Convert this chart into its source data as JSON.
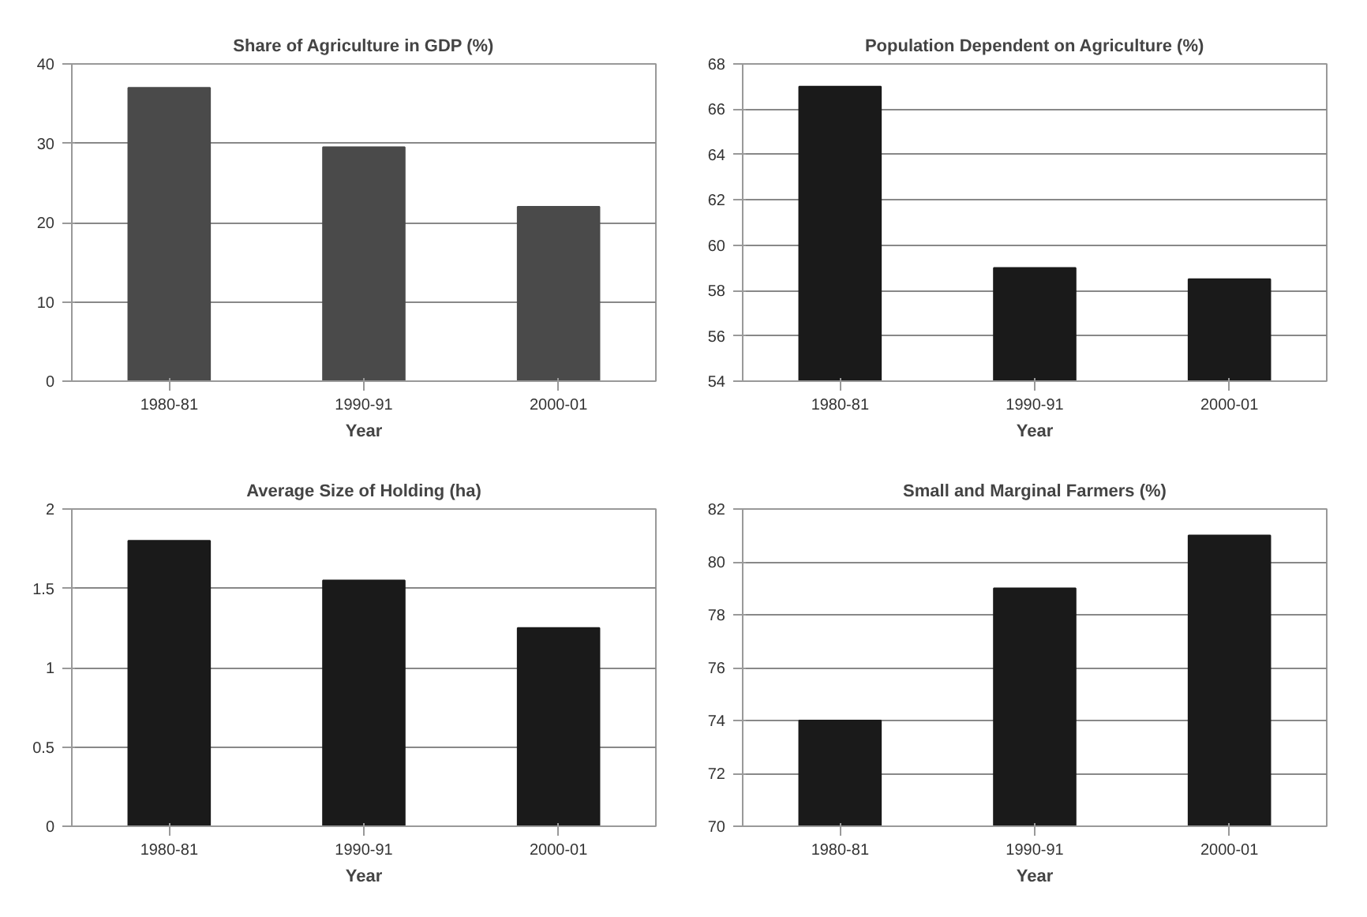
{
  "chart_data": [
    {
      "type": "bar",
      "title": "Share of Agriculture in GDP (%)",
      "xlabel": "Year",
      "categories": [
        "1980-81",
        "1990-91",
        "2000-01"
      ],
      "values": [
        37,
        29.5,
        22
      ],
      "color": "#4a4a4a",
      "ylim": [
        0,
        40
      ],
      "yticks": [
        0,
        10,
        20,
        30,
        40
      ],
      "grid": "y"
    },
    {
      "type": "bar",
      "title": "Population Dependent on Agriculture (%)",
      "xlabel": "Year",
      "categories": [
        "1980-81",
        "1990-91",
        "2000-01"
      ],
      "values": [
        67,
        59,
        58.5
      ],
      "color": "#1a1a1a",
      "ylim": [
        54,
        68
      ],
      "yticks": [
        54,
        56,
        58,
        60,
        62,
        64,
        66,
        68
      ],
      "grid": "y"
    },
    {
      "type": "bar",
      "title": "Average Size of Holding (ha)",
      "xlabel": "Year",
      "categories": [
        "1980-81",
        "1990-91",
        "2000-01"
      ],
      "values": [
        1.8,
        1.55,
        1.25
      ],
      "color": "#1a1a1a",
      "ylim": [
        0,
        2
      ],
      "yticks": [
        0,
        0.5,
        1,
        1.5,
        2
      ],
      "grid": "y"
    },
    {
      "type": "bar",
      "title": "Small and Marginal Farmers (%)",
      "xlabel": "Year",
      "categories": [
        "1980-81",
        "1990-91",
        "2000-01"
      ],
      "values": [
        74,
        79,
        81
      ],
      "color": "#1a1a1a",
      "ylim": [
        70,
        82
      ],
      "yticks": [
        70,
        72,
        74,
        76,
        78,
        80,
        82
      ],
      "grid": "y"
    }
  ]
}
